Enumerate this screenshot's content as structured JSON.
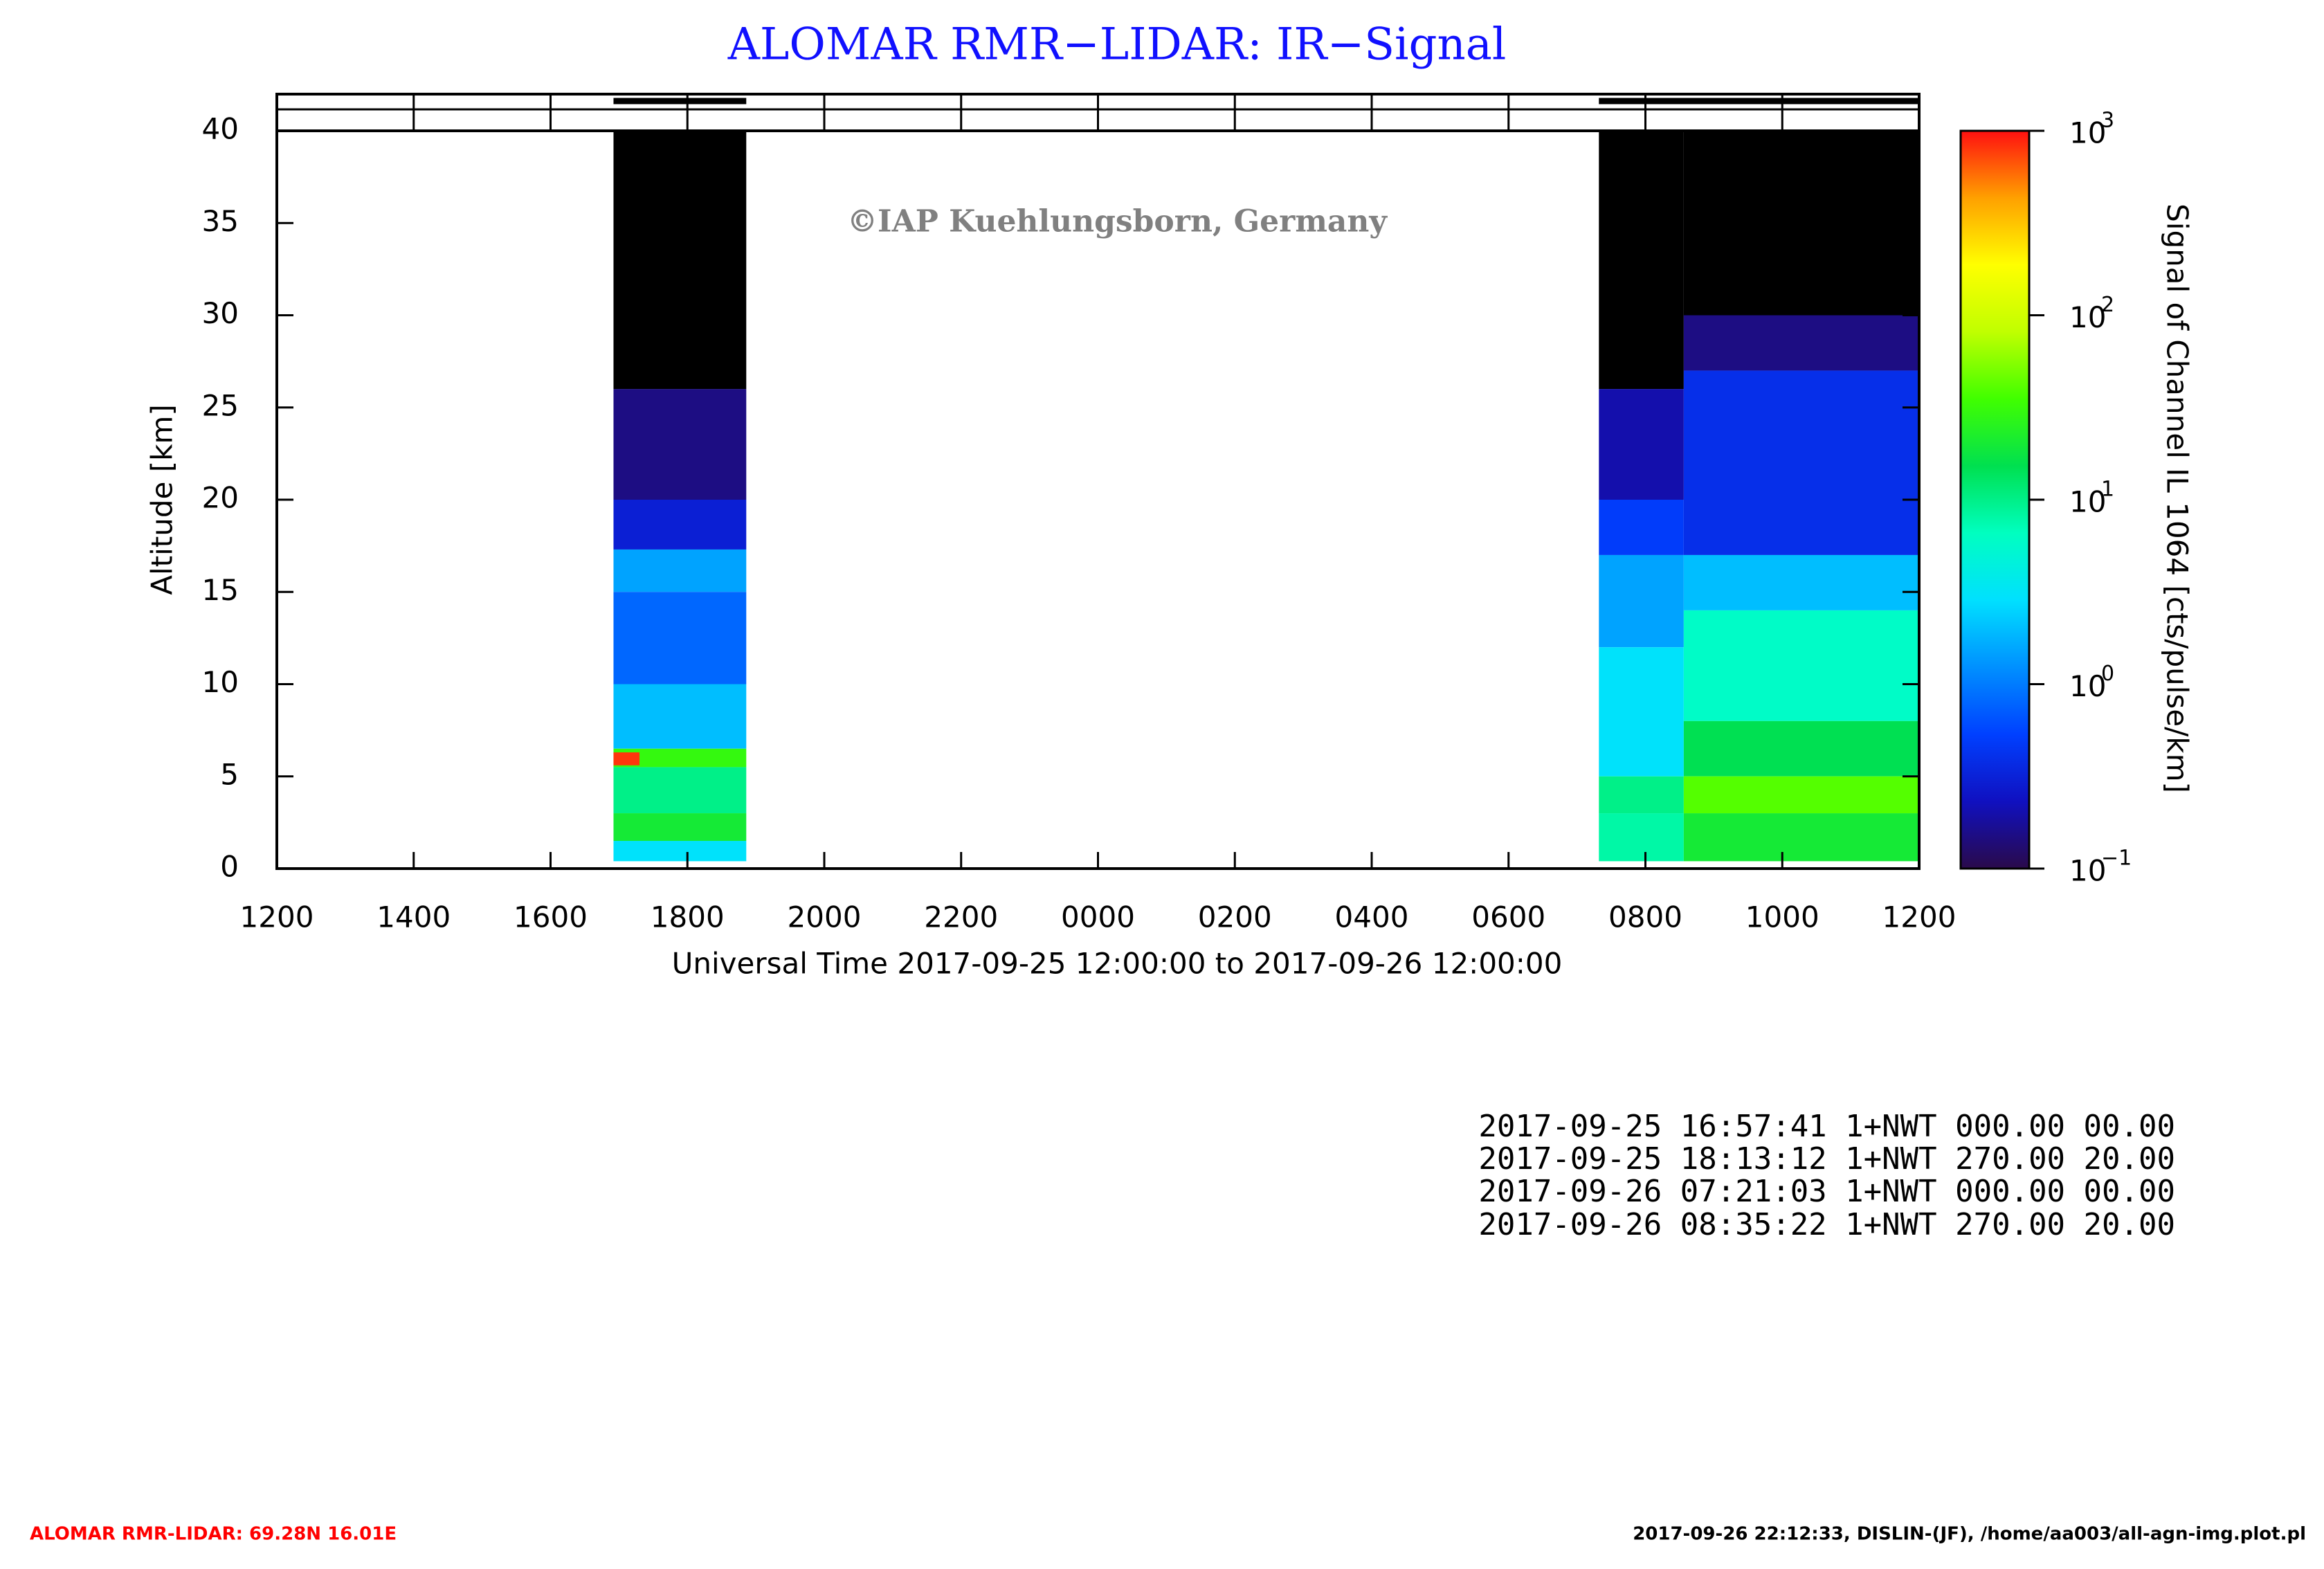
{
  "chart_data": {
    "type": "heatmap",
    "title": "ALOMAR RMR−LIDAR: IR−Signal",
    "annotation": "©IAP Kuehlungsborn, Germany",
    "x_label": "Universal Time 2017-09-25 12:00:00 to 2017-09-26 12:00:00",
    "y_label": "Altitude [km]",
    "colorbar_label": "Signal of Channel IL 1064 [cts/pulse/km]",
    "xlim": [
      0,
      24
    ],
    "xticks": [
      {
        "value": 0,
        "label": "1200"
      },
      {
        "value": 2,
        "label": "1400"
      },
      {
        "value": 4,
        "label": "1600"
      },
      {
        "value": 6,
        "label": "1800"
      },
      {
        "value": 8,
        "label": "2000"
      },
      {
        "value": 10,
        "label": "2200"
      },
      {
        "value": 12,
        "label": "0000"
      },
      {
        "value": 14,
        "label": "0200"
      },
      {
        "value": 16,
        "label": "0400"
      },
      {
        "value": 18,
        "label": "0600"
      },
      {
        "value": 20,
        "label": "0800"
      },
      {
        "value": 22,
        "label": "1000"
      },
      {
        "value": 24,
        "label": "1200"
      }
    ],
    "ylim": [
      0,
      40
    ],
    "yticks": [
      0,
      5,
      10,
      15,
      20,
      25,
      30,
      35,
      40
    ],
    "clim": [
      0.1,
      1000
    ],
    "log_color": true,
    "cticks": [
      {
        "value": 0.1,
        "label": "10",
        "exponent": "−1"
      },
      {
        "value": 1,
        "label": "10",
        "exponent": "0"
      },
      {
        "value": 10,
        "label": "10",
        "exponent": "1"
      },
      {
        "value": 100,
        "label": "10",
        "exponent": "2"
      },
      {
        "value": 1000,
        "label": "10",
        "exponent": "3"
      }
    ],
    "colormap": [
      "#2a0a4a",
      "#1010c0",
      "#0040ff",
      "#0090ff",
      "#00e0ff",
      "#00ffc0",
      "#00e050",
      "#40ff00",
      "#c0ff00",
      "#ffff00",
      "#ffa000",
      "#ff1010"
    ],
    "under_color": "#000000",
    "periods": [
      [
        4.92,
        6.86
      ],
      [
        19.32,
        24
      ]
    ],
    "cells": [
      {
        "x": [
          4.92,
          6.86
        ],
        "y": [
          26,
          40
        ],
        "value": 0.05
      },
      {
        "x": [
          4.92,
          6.86
        ],
        "y": [
          20,
          26
        ],
        "value": 0.15
      },
      {
        "x": [
          4.92,
          6.86
        ],
        "y": [
          17.3,
          20
        ],
        "value": 0.3
      },
      {
        "x": [
          4.92,
          6.86
        ],
        "y": [
          15,
          17.3
        ],
        "value": 1.5
      },
      {
        "x": [
          4.92,
          6.86
        ],
        "y": [
          10,
          15
        ],
        "value": 0.8
      },
      {
        "x": [
          4.92,
          6.86
        ],
        "y": [
          6.5,
          10
        ],
        "value": 2
      },
      {
        "x": [
          4.92,
          6.86
        ],
        "y": [
          5.5,
          6.5
        ],
        "value": 30
      },
      {
        "x": [
          4.92,
          5.3
        ],
        "y": [
          5.6,
          6.3
        ],
        "value": 800
      },
      {
        "x": [
          4.92,
          6.86
        ],
        "y": [
          3,
          5.5
        ],
        "value": 10
      },
      {
        "x": [
          4.92,
          6.86
        ],
        "y": [
          1.5,
          3
        ],
        "value": 20
      },
      {
        "x": [
          4.92,
          6.86
        ],
        "y": [
          0.4,
          1.5
        ],
        "value": 3
      },
      {
        "x": [
          19.32,
          20.56
        ],
        "y": [
          26,
          40
        ],
        "value": 0.05
      },
      {
        "x": [
          19.32,
          20.56
        ],
        "y": [
          20,
          26
        ],
        "value": 0.2
      },
      {
        "x": [
          19.32,
          20.56
        ],
        "y": [
          17,
          20
        ],
        "value": 0.5
      },
      {
        "x": [
          19.32,
          20.56
        ],
        "y": [
          12,
          17
        ],
        "value": 1.5
      },
      {
        "x": [
          19.32,
          20.56
        ],
        "y": [
          5,
          12
        ],
        "value": 3
      },
      {
        "x": [
          19.32,
          20.56
        ],
        "y": [
          3,
          5
        ],
        "value": 10
      },
      {
        "x": [
          19.32,
          20.56
        ],
        "y": [
          0.4,
          3
        ],
        "value": 8
      },
      {
        "x": [
          20.56,
          24
        ],
        "y": [
          30,
          40
        ],
        "value": 0.05
      },
      {
        "x": [
          20.56,
          24
        ],
        "y": [
          27,
          30
        ],
        "value": 0.15
      },
      {
        "x": [
          20.56,
          24
        ],
        "y": [
          17,
          27
        ],
        "value": 0.4
      },
      {
        "x": [
          20.56,
          24
        ],
        "y": [
          14,
          17
        ],
        "value": 2
      },
      {
        "x": [
          20.56,
          24
        ],
        "y": [
          8,
          14
        ],
        "value": 6
      },
      {
        "x": [
          20.56,
          24
        ],
        "y": [
          5,
          8
        ],
        "value": 15
      },
      {
        "x": [
          20.56,
          24
        ],
        "y": [
          3,
          5
        ],
        "value": 40
      },
      {
        "x": [
          20.56,
          24
        ],
        "y": [
          0.4,
          3
        ],
        "value": 20
      }
    ]
  },
  "info_lines": [
    "2017-09-25 16:57:41 1+NWT 000.00 00.00",
    "2017-09-25 18:13:12 1+NWT 270.00 20.00",
    "2017-09-26 07:21:03 1+NWT 000.00 00.00",
    "2017-09-26 08:35:22 1+NWT 270.00 20.00"
  ],
  "footer_left": "ALOMAR RMR-LIDAR: 69.28N 16.01E",
  "footer_right": "2017-09-26 22:12:33, DISLIN-(JF), /home/aa003/all-agn-img.plot.pl"
}
